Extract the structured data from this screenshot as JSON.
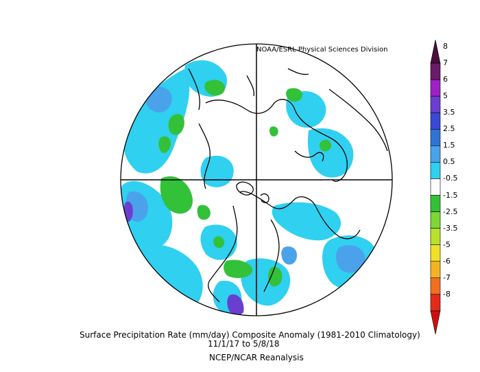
{
  "map": {
    "credit": "NOAA/ESRL Physical Sciences Division",
    "projection": "north-polar-stereographic",
    "title_line1": "Surface Precipitation Rate (mm/day) Composite Anomaly (1981-2010 Climatology)",
    "title_line2": "11/1/17  to 5/8/18",
    "title_line3": "NCEP/NCAR Reanalysis"
  },
  "colorbar": {
    "labels": [
      "8",
      "7",
      "6",
      "5",
      "3.5",
      "2.5",
      "1.5",
      "0.5",
      "-0.5",
      "-1.5",
      "-2.5",
      "-3.5",
      "-5",
      "-6",
      "-7",
      "-8"
    ],
    "colors": [
      "#4b0d3e",
      "#6a1b6a",
      "#a020c8",
      "#6a3fd0",
      "#3a49d6",
      "#2f74d4",
      "#4aa3ea",
      "#2fd0f0",
      "#ffffff",
      "#33c13a",
      "#7fd636",
      "#b9e02c",
      "#f0e028",
      "#f5b323",
      "#f0701e",
      "#e52a1a",
      "#cc1010"
    ]
  }
}
